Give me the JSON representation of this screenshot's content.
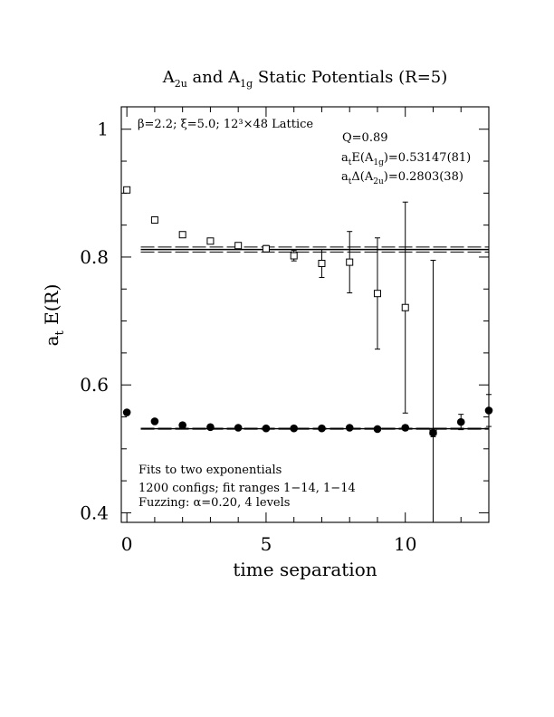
{
  "chart_data": {
    "type": "scatter",
    "title": "A2u and A1g Static Potentials (R=5)",
    "title_parts": {
      "a": "A",
      "a_sub": "2u",
      "mid": " and A",
      "b_sub": "1g",
      "rest": " Static Potentials (R=5)"
    },
    "xlabel": "time separation",
    "ylabel": "a_t E(R)",
    "ylabel_parts": {
      "main": "a",
      "sub": "t",
      "rest": " E(R)"
    },
    "xlim": [
      -0.2,
      13
    ],
    "ylim": [
      0.385,
      1.035
    ],
    "x_ticks": [
      0,
      5,
      10
    ],
    "x_tick_labels": [
      "0",
      "5",
      "10"
    ],
    "y_ticks": [
      0.4,
      0.6,
      0.8,
      1.0
    ],
    "y_tick_labels": [
      "0.4",
      "0.6",
      "0.8",
      "1"
    ],
    "annotations": {
      "lattice": "β=2.2; ξ=5.0; 12³×48 Lattice",
      "q": "Q=0.89",
      "energy": {
        "pre": "a",
        "sub1": "t",
        "mid": "E(A",
        "sub2": "1g",
        "post": ")=0.53147(81)"
      },
      "delta": {
        "pre": "a",
        "sub1": "t",
        "mid": "Δ(A",
        "sub2": "2u",
        "post": ")=0.2803(38)"
      },
      "fit_lines": [
        "Fits to two exponentials",
        "1200 configs; fit ranges 1−14, 1−14",
        "Fuzzing: α=0.20, 4 levels"
      ]
    },
    "fits": [
      {
        "series": "A1g",
        "y": 0.5315,
        "err": 0.0008,
        "x_range": [
          0.5,
          13
        ]
      },
      {
        "series": "A2u",
        "y": 0.8118,
        "err": 0.0039,
        "x_range": [
          0.5,
          13
        ]
      }
    ],
    "series": [
      {
        "name": "A1g",
        "marker": "filled-circle",
        "x": [
          0,
          1,
          2,
          3,
          4,
          5,
          6,
          7,
          8,
          9,
          10,
          11,
          12,
          13
        ],
        "y": [
          0.557,
          0.543,
          0.537,
          0.534,
          0.533,
          0.532,
          0.532,
          0.532,
          0.533,
          0.531,
          0.533,
          0.525,
          0.542,
          0.56
        ],
        "err": [
          0.001,
          0.001,
          0.001,
          0.001,
          0.001,
          0.001,
          0.001,
          0.002,
          0.002,
          0.003,
          0.004,
          0.006,
          0.012,
          0.025
        ]
      },
      {
        "name": "A2u",
        "marker": "open-square",
        "x": [
          0,
          1,
          2,
          3,
          4,
          5,
          6,
          7,
          8,
          9,
          10,
          11
        ],
        "y": [
          0.905,
          0.858,
          0.835,
          0.825,
          0.818,
          0.813,
          0.802,
          0.79,
          0.792,
          0.743,
          0.721,
          0.527
        ],
        "err": [
          0.002,
          0.002,
          0.002,
          0.003,
          0.004,
          0.005,
          0.008,
          0.022,
          0.048,
          0.087,
          0.165,
          0.268
        ]
      }
    ]
  }
}
